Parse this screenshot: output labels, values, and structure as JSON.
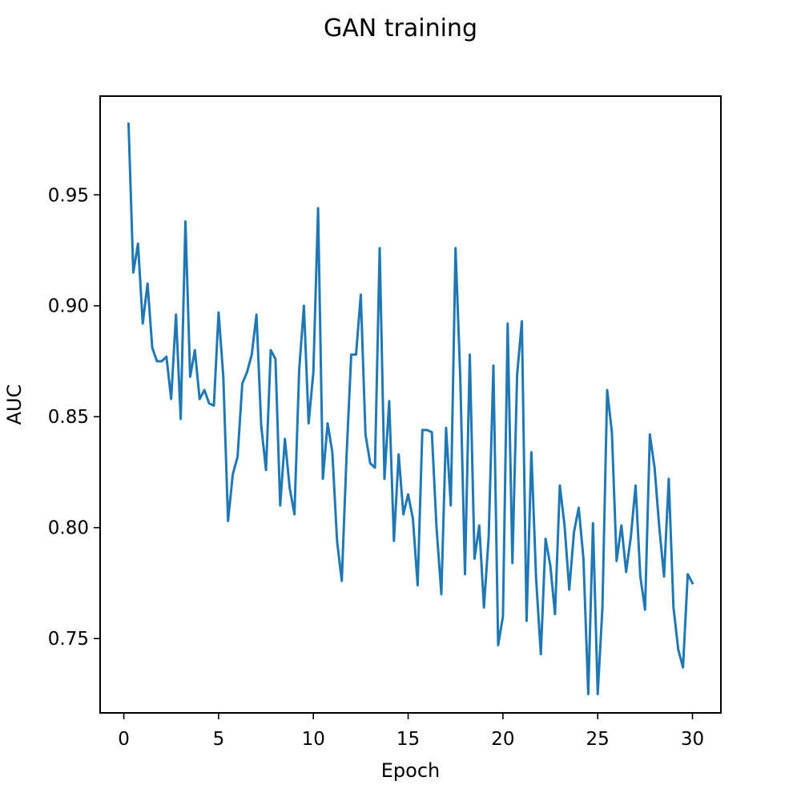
{
  "chart_data": {
    "type": "line",
    "title": "GAN training",
    "xlabel": "Epoch",
    "ylabel": "AUC",
    "xlim": [
      -1.25,
      31.5
    ],
    "ylim": [
      0.7165,
      0.9945
    ],
    "xticks": [
      0,
      5,
      10,
      15,
      20,
      25,
      30
    ],
    "xtick_labels": [
      "0",
      "5",
      "10",
      "15",
      "20",
      "25",
      "30"
    ],
    "yticks": [
      0.75,
      0.8,
      0.85,
      0.9,
      0.95
    ],
    "ytick_labels": [
      "0.75",
      "0.80",
      "0.85",
      "0.90",
      "0.95"
    ],
    "grid": false,
    "series": [
      {
        "color": "#1f77b4",
        "x": [
          0.25,
          0.5,
          0.75,
          1.0,
          1.25,
          1.5,
          1.75,
          2.0,
          2.25,
          2.5,
          2.75,
          3.0,
          3.25,
          3.5,
          3.75,
          4.0,
          4.25,
          4.5,
          4.75,
          5.0,
          5.25,
          5.5,
          5.75,
          6.0,
          6.25,
          6.5,
          6.75,
          7.0,
          7.25,
          7.5,
          7.75,
          8.0,
          8.25,
          8.5,
          8.75,
          9.0,
          9.25,
          9.5,
          9.75,
          10.0,
          10.25,
          10.5,
          10.75,
          11.0,
          11.25,
          11.5,
          11.75,
          12.0,
          12.25,
          12.5,
          12.75,
          13.0,
          13.25,
          13.5,
          13.75,
          14.0,
          14.25,
          14.5,
          14.75,
          15.0,
          15.25,
          15.5,
          15.75,
          16.0,
          16.25,
          16.5,
          16.75,
          17.0,
          17.25,
          17.5,
          17.75,
          18.0,
          18.25,
          18.5,
          18.75,
          19.0,
          19.25,
          19.5,
          19.75,
          20.0,
          20.25,
          20.5,
          20.75,
          21.0,
          21.25,
          21.5,
          21.75,
          22.0,
          22.25,
          22.5,
          22.75,
          23.0,
          23.25,
          23.5,
          23.75,
          24.0,
          24.25,
          24.5,
          24.75,
          25.0,
          25.25,
          25.5,
          25.75,
          26.0,
          26.25,
          26.5,
          26.75,
          27.0,
          27.25,
          27.5,
          27.75,
          28.0,
          28.25,
          28.5,
          28.75,
          29.0,
          29.25,
          29.5,
          29.75,
          30.0
        ],
        "values": [
          0.982,
          0.915,
          0.928,
          0.892,
          0.91,
          0.881,
          0.875,
          0.875,
          0.877,
          0.858,
          0.896,
          0.849,
          0.938,
          0.868,
          0.88,
          0.858,
          0.862,
          0.856,
          0.855,
          0.897,
          0.868,
          0.803,
          0.824,
          0.832,
          0.865,
          0.87,
          0.878,
          0.896,
          0.846,
          0.826,
          0.88,
          0.876,
          0.81,
          0.84,
          0.818,
          0.806,
          0.871,
          0.9,
          0.847,
          0.87,
          0.944,
          0.822,
          0.847,
          0.834,
          0.794,
          0.776,
          0.832,
          0.878,
          0.878,
          0.905,
          0.842,
          0.829,
          0.827,
          0.926,
          0.822,
          0.857,
          0.794,
          0.833,
          0.806,
          0.815,
          0.804,
          0.774,
          0.844,
          0.844,
          0.843,
          0.8,
          0.77,
          0.845,
          0.81,
          0.926,
          0.868,
          0.779,
          0.878,
          0.786,
          0.801,
          0.764,
          0.796,
          0.873,
          0.747,
          0.76,
          0.892,
          0.784,
          0.869,
          0.893,
          0.758,
          0.834,
          0.777,
          0.743,
          0.795,
          0.783,
          0.761,
          0.819,
          0.801,
          0.772,
          0.798,
          0.809,
          0.786,
          0.725,
          0.802,
          0.725,
          0.764,
          0.862,
          0.843,
          0.785,
          0.801,
          0.78,
          0.796,
          0.819,
          0.778,
          0.763,
          0.842,
          0.827,
          0.8,
          0.778,
          0.822,
          0.764,
          0.745,
          0.737,
          0.779,
          0.775
        ]
      }
    ]
  }
}
